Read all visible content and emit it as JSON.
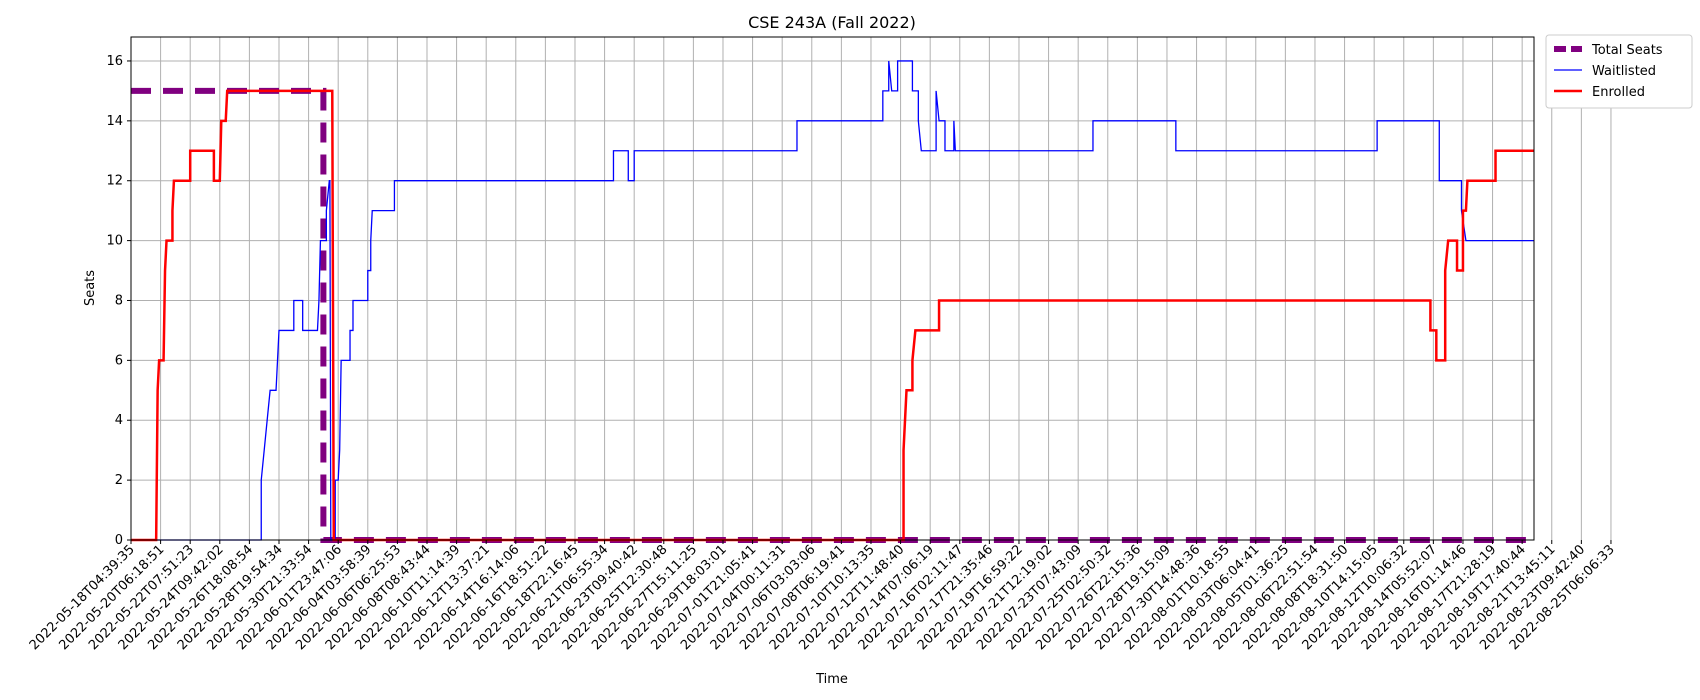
{
  "chart_data": {
    "type": "line",
    "title": "CSE 243A (Fall 2022)",
    "xlabel": "Time",
    "ylabel": "Seats",
    "ylim": [
      0,
      16.8
    ],
    "xlim": [
      0,
      47.4
    ],
    "yticks": [
      0,
      2,
      4,
      6,
      8,
      10,
      12,
      14,
      16
    ],
    "grid": true,
    "legend_position": "outside-top-right",
    "x_tick_labels": [
      "2022-05-18T04:39:35",
      "2022-05-20T06:18:51",
      "2022-05-22T07:51:23",
      "2022-05-24T09:42:02",
      "2022-05-26T18:08:54",
      "2022-05-28T19:54:34",
      "2022-05-30T21:33:54",
      "2022-06-01T23:47:06",
      "2022-06-04T03:58:39",
      "2022-06-06T06:25:53",
      "2022-06-08T08:43:44",
      "2022-06-10T11:14:39",
      "2022-06-12T13:37:21",
      "2022-06-14T16:14:06",
      "2022-06-16T18:51:22",
      "2022-06-18T22:16:45",
      "2022-06-21T06:55:34",
      "2022-06-23T09:40:42",
      "2022-06-25T12:30:48",
      "2022-06-27T15:11:25",
      "2022-06-29T18:03:01",
      "2022-07-01T21:05:41",
      "2022-07-04T00:11:31",
      "2022-07-06T03:03:06",
      "2022-07-08T06:19:41",
      "2022-07-10T10:13:35",
      "2022-07-12T11:48:40",
      "2022-07-14T07:06:19",
      "2022-07-16T02:11:47",
      "2022-07-17T21:35:46",
      "2022-07-19T16:59:22",
      "2022-07-21T12:19:02",
      "2022-07-23T07:43:09",
      "2022-07-25T02:50:32",
      "2022-07-26T22:15:36",
      "2022-07-28T19:15:09",
      "2022-07-30T14:48:36",
      "2022-08-01T10:18:55",
      "2022-08-03T06:04:41",
      "2022-08-05T01:36:25",
      "2022-08-06T22:51:54",
      "2022-08-08T18:31:50",
      "2022-08-10T14:15:05",
      "2022-08-12T10:06:32",
      "2022-08-14T05:52:07",
      "2022-08-16T01:14:46",
      "2022-08-17T21:28:19",
      "2022-08-19T17:40:44",
      "2022-08-21T13:45:11",
      "2022-08-23T09:42:40",
      "2022-08-25T06:06:33"
    ],
    "series": [
      {
        "name": "Total Seats",
        "color": "#800080",
        "style": "dashed",
        "points": [
          [
            0,
            15
          ],
          [
            6.5,
            15
          ],
          [
            6.5,
            0
          ],
          [
            47.4,
            0
          ]
        ]
      },
      {
        "name": "Waitlisted",
        "color": "#0000ff",
        "style": "solid",
        "points": [
          [
            0,
            0
          ],
          [
            4.4,
            0
          ],
          [
            4.4,
            2
          ],
          [
            4.5,
            3
          ],
          [
            4.6,
            4
          ],
          [
            4.7,
            5
          ],
          [
            4.9,
            5
          ],
          [
            4.95,
            6
          ],
          [
            5.0,
            7
          ],
          [
            5.5,
            7
          ],
          [
            5.5,
            8
          ],
          [
            5.8,
            8
          ],
          [
            5.8,
            7
          ],
          [
            6.3,
            7
          ],
          [
            6.35,
            8
          ],
          [
            6.4,
            10
          ],
          [
            6.6,
            10
          ],
          [
            6.6,
            11
          ],
          [
            6.7,
            12
          ],
          [
            6.72,
            12
          ],
          [
            6.75,
            0
          ],
          [
            6.9,
            0
          ],
          [
            6.9,
            2
          ],
          [
            7.0,
            2
          ],
          [
            7.05,
            3
          ],
          [
            7.1,
            6
          ],
          [
            7.4,
            6
          ],
          [
            7.4,
            7
          ],
          [
            7.5,
            7
          ],
          [
            7.5,
            8
          ],
          [
            8.0,
            8
          ],
          [
            8.0,
            9
          ],
          [
            8.1,
            9
          ],
          [
            8.1,
            10
          ],
          [
            8.15,
            11
          ],
          [
            8.9,
            11
          ],
          [
            8.9,
            12
          ],
          [
            16.3,
            12
          ],
          [
            16.3,
            13
          ],
          [
            16.8,
            13
          ],
          [
            16.8,
            12
          ],
          [
            17.0,
            12
          ],
          [
            17.0,
            13
          ],
          [
            22.5,
            13
          ],
          [
            22.5,
            14
          ],
          [
            25.4,
            14
          ],
          [
            25.4,
            15
          ],
          [
            25.6,
            15
          ],
          [
            25.6,
            16
          ],
          [
            25.7,
            15
          ],
          [
            25.9,
            15
          ],
          [
            25.9,
            16
          ],
          [
            26.4,
            16
          ],
          [
            26.4,
            15
          ],
          [
            26.6,
            15
          ],
          [
            26.6,
            14
          ],
          [
            26.7,
            13
          ],
          [
            27.2,
            13
          ],
          [
            27.2,
            15
          ],
          [
            27.3,
            14
          ],
          [
            27.5,
            14
          ],
          [
            27.5,
            13
          ],
          [
            27.8,
            13
          ],
          [
            27.8,
            14
          ],
          [
            27.85,
            13
          ],
          [
            32.5,
            13
          ],
          [
            32.5,
            14
          ],
          [
            35.3,
            14
          ],
          [
            35.3,
            13
          ],
          [
            42.1,
            13
          ],
          [
            42.1,
            14
          ],
          [
            44.2,
            14
          ],
          [
            44.2,
            12
          ],
          [
            44.95,
            12
          ],
          [
            44.95,
            11
          ],
          [
            45.1,
            10
          ],
          [
            47.4,
            10
          ]
        ]
      },
      {
        "name": "Enrolled",
        "color": "#ff0000",
        "style": "solid",
        "points": [
          [
            0,
            0
          ],
          [
            0.85,
            0
          ],
          [
            0.9,
            5
          ],
          [
            0.95,
            6
          ],
          [
            1.1,
            6
          ],
          [
            1.15,
            9
          ],
          [
            1.2,
            10
          ],
          [
            1.4,
            10
          ],
          [
            1.4,
            11
          ],
          [
            1.45,
            12
          ],
          [
            2.0,
            12
          ],
          [
            2.0,
            13
          ],
          [
            2.8,
            13
          ],
          [
            2.8,
            12
          ],
          [
            3.0,
            12
          ],
          [
            3.05,
            14
          ],
          [
            3.2,
            14
          ],
          [
            3.25,
            15
          ],
          [
            6.8,
            15
          ],
          [
            6.85,
            0
          ],
          [
            26.1,
            0
          ],
          [
            26.1,
            3
          ],
          [
            26.2,
            5
          ],
          [
            26.4,
            5
          ],
          [
            26.4,
            6
          ],
          [
            26.5,
            7
          ],
          [
            27.3,
            7
          ],
          [
            27.3,
            8
          ],
          [
            43.9,
            8
          ],
          [
            43.9,
            7
          ],
          [
            44.1,
            7
          ],
          [
            44.1,
            6
          ],
          [
            44.4,
            6
          ],
          [
            44.4,
            9
          ],
          [
            44.5,
            10
          ],
          [
            44.8,
            10
          ],
          [
            44.8,
            9
          ],
          [
            45.0,
            9
          ],
          [
            45.0,
            11
          ],
          [
            45.1,
            11
          ],
          [
            45.15,
            12
          ],
          [
            46.1,
            12
          ],
          [
            46.1,
            13
          ],
          [
            47.4,
            13
          ]
        ]
      }
    ]
  }
}
